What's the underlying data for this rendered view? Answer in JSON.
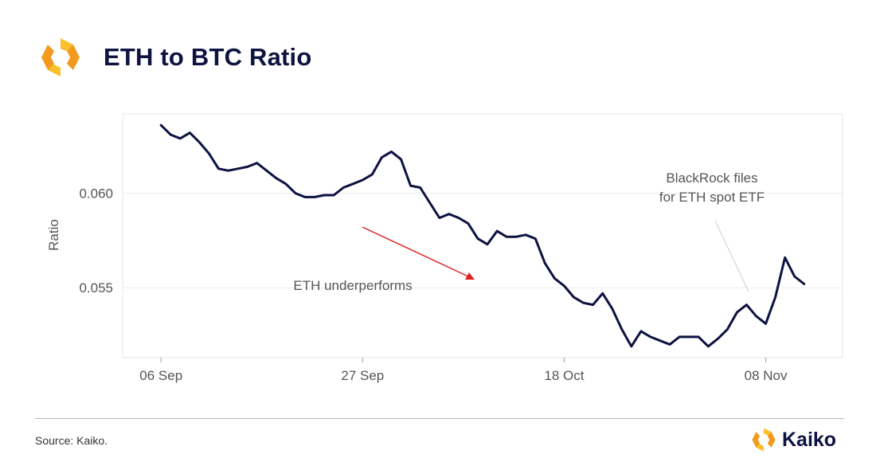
{
  "header": {
    "title": "ETH to BTC Ratio",
    "logo_icon": "kaiko-logo-icon"
  },
  "footer": {
    "source": "Source: Kaiko.",
    "brand": "Kaiko"
  },
  "colors": {
    "line": "#0d1240",
    "logo_orange": "#f39a1e",
    "logo_yellow": "#fbc02d",
    "arrow": "#e02020"
  },
  "chart_data": {
    "type": "line",
    "title": "",
    "xlabel": "",
    "ylabel": "Ratio",
    "x_ticks": [
      "06 Sep",
      "27 Sep",
      "18 Oct",
      "08 Nov"
    ],
    "x_tick_days": [
      0,
      21,
      42,
      63
    ],
    "y_ticks": [
      0.055,
      0.06
    ],
    "y_tick_labels": [
      "0.055",
      "0.060"
    ],
    "xlim_days": [
      -4,
      71
    ],
    "ylim": [
      0.0513,
      0.0642
    ],
    "grid": true,
    "series": [
      {
        "x_days": [
          0,
          1,
          2,
          3,
          4,
          5,
          6,
          7,
          8,
          9,
          10,
          11,
          12,
          13,
          14,
          15,
          16,
          17,
          18,
          19,
          20,
          21,
          22,
          23,
          24,
          25,
          26,
          27,
          28,
          29,
          30,
          31,
          32,
          33,
          34,
          35,
          36,
          37,
          38,
          39,
          40,
          41,
          42,
          43,
          44,
          45,
          46,
          47,
          48,
          49,
          50,
          51,
          52,
          53,
          54,
          55,
          56,
          57,
          58,
          59,
          60,
          61,
          62,
          63,
          64,
          65,
          66,
          67
        ],
        "y": [
          0.0636,
          0.0631,
          0.0629,
          0.0632,
          0.0627,
          0.0621,
          0.0613,
          0.0612,
          0.0613,
          0.0614,
          0.0616,
          0.0612,
          0.0608,
          0.0605,
          0.06,
          0.0598,
          0.0598,
          0.0599,
          0.0599,
          0.0603,
          0.0605,
          0.0607,
          0.061,
          0.0619,
          0.0622,
          0.0618,
          0.0604,
          0.0603,
          0.0595,
          0.0587,
          0.0589,
          0.0587,
          0.0584,
          0.0576,
          0.0573,
          0.058,
          0.0577,
          0.0577,
          0.0578,
          0.0576,
          0.0563,
          0.0555,
          0.0551,
          0.0545,
          0.0542,
          0.0541,
          0.0547,
          0.0539,
          0.0528,
          0.0519,
          0.0527,
          0.0524,
          0.0522,
          0.052,
          0.0524,
          0.0524,
          0.0524,
          0.0519,
          0.0523,
          0.0528,
          0.0537,
          0.0541,
          0.0535,
          0.0531,
          0.0545,
          0.0566,
          0.0556,
          0.0552
        ]
      }
    ],
    "annotations": [
      {
        "text": "ETH underperforms"
      },
      {
        "text": "BlackRock files",
        "text2": "for ETH spot ETF"
      }
    ]
  }
}
